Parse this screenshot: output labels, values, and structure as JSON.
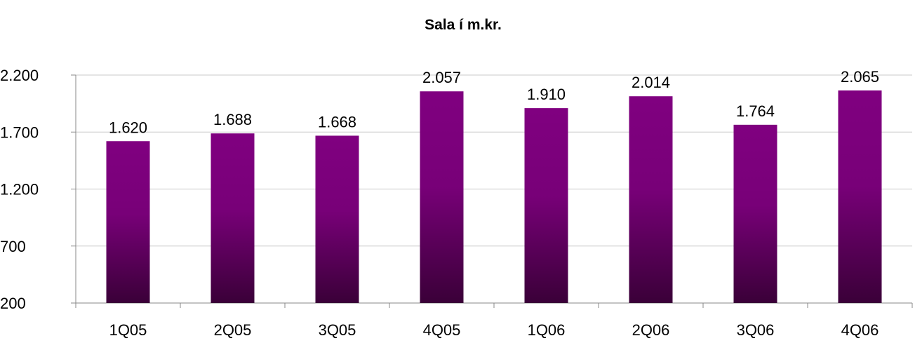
{
  "chart_data": {
    "type": "bar",
    "title": "Sala í m.kr.",
    "xlabel": "",
    "ylabel": "",
    "categories": [
      "1Q05",
      "2Q05",
      "3Q05",
      "4Q05",
      "1Q06",
      "2Q06",
      "3Q06",
      "4Q06"
    ],
    "values": [
      1620,
      1688,
      1668,
      2057,
      1910,
      2014,
      1764,
      2065
    ],
    "value_labels": [
      "1.620",
      "1.688",
      "1.668",
      "2.057",
      "1.910",
      "2.014",
      "1.764",
      "2.065"
    ],
    "ylim": [
      200,
      2200
    ],
    "yticks": [
      200,
      700,
      1200,
      1700,
      2200
    ],
    "ytick_labels": [
      "200",
      "700",
      "1.200",
      "1.700",
      "2.200"
    ],
    "grid": true,
    "legend": "none",
    "bar_color_top": "#800080",
    "bar_color_bottom": "#3a0038"
  }
}
